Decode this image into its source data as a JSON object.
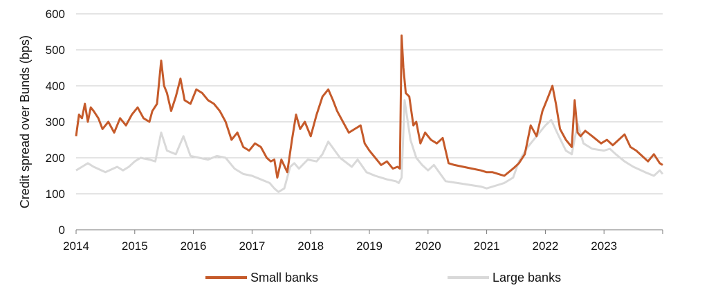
{
  "chart_data": {
    "type": "line",
    "title": "",
    "xlabel": "",
    "ylabel": "Credit spread over Bunds (bps)",
    "xlim": [
      2014,
      2024
    ],
    "ylim": [
      0,
      600
    ],
    "y_ticks": [
      0,
      100,
      200,
      300,
      400,
      500,
      600
    ],
    "x_ticks": [
      2014,
      2015,
      2016,
      2017,
      2018,
      2019,
      2020,
      2021,
      2022,
      2023
    ],
    "x_tick_labels": [
      "2014",
      "2015",
      "2016",
      "2017",
      "2018",
      "2019",
      "2020",
      "2021",
      "2022",
      "2023"
    ],
    "y_tick_labels": [
      "0",
      "100",
      "200",
      "300",
      "400",
      "500",
      "600"
    ],
    "grid": "horizontal",
    "legend_position": "bottom",
    "series": [
      {
        "name": "Large banks",
        "color": "#d9d9d9",
        "x": [
          2014.0,
          2014.1,
          2014.2,
          2014.3,
          2014.5,
          2014.7,
          2014.8,
          2014.9,
          2015.0,
          2015.1,
          2015.25,
          2015.35,
          2015.45,
          2015.55,
          2015.7,
          2015.83,
          2015.95,
          2016.1,
          2016.25,
          2016.4,
          2016.55,
          2016.7,
          2016.85,
          2017.0,
          2017.15,
          2017.3,
          2017.38,
          2017.45,
          2017.55,
          2017.65,
          2017.72,
          2017.8,
          2017.95,
          2018.1,
          2018.2,
          2018.3,
          2018.5,
          2018.7,
          2018.8,
          2018.95,
          2019.1,
          2019.3,
          2019.45,
          2019.5,
          2019.55,
          2019.6,
          2019.7,
          2019.8,
          2019.9,
          2020.0,
          2020.1,
          2020.3,
          2020.5,
          2020.7,
          2020.9,
          2021.0,
          2021.2,
          2021.3,
          2021.45,
          2021.55,
          2021.7,
          2021.85,
          2022.0,
          2022.1,
          2022.2,
          2022.35,
          2022.45,
          2022.55,
          2022.65,
          2022.8,
          2023.0,
          2023.1,
          2023.2,
          2023.35,
          2023.5,
          2023.7,
          2023.85,
          2023.95,
          2024.0
        ],
        "y": [
          165,
          175,
          185,
          175,
          160,
          175,
          165,
          175,
          190,
          200,
          195,
          190,
          270,
          220,
          210,
          260,
          205,
          200,
          195,
          205,
          200,
          170,
          155,
          150,
          140,
          130,
          115,
          105,
          115,
          175,
          185,
          170,
          195,
          190,
          210,
          245,
          200,
          175,
          195,
          160,
          150,
          140,
          135,
          130,
          145,
          360,
          250,
          200,
          180,
          165,
          180,
          135,
          130,
          125,
          120,
          115,
          125,
          130,
          145,
          190,
          230,
          260,
          290,
          305,
          270,
          220,
          210,
          295,
          240,
          225,
          220,
          225,
          210,
          190,
          175,
          160,
          150,
          165,
          155
        ]
      },
      {
        "name": "Small banks",
        "color": "#c55a2a",
        "x": [
          2014.0,
          2014.05,
          2014.1,
          2014.15,
          2014.2,
          2014.25,
          2014.3,
          2014.38,
          2014.45,
          2014.55,
          2014.65,
          2014.75,
          2014.85,
          2014.95,
          2015.05,
          2015.15,
          2015.25,
          2015.3,
          2015.38,
          2015.45,
          2015.5,
          2015.55,
          2015.62,
          2015.7,
          2015.78,
          2015.85,
          2015.95,
          2016.05,
          2016.15,
          2016.25,
          2016.35,
          2016.45,
          2016.55,
          2016.65,
          2016.75,
          2016.85,
          2016.95,
          2017.05,
          2017.15,
          2017.25,
          2017.32,
          2017.38,
          2017.43,
          2017.5,
          2017.6,
          2017.68,
          2017.75,
          2017.82,
          2017.9,
          2018.0,
          2018.1,
          2018.2,
          2018.3,
          2018.38,
          2018.45,
          2018.55,
          2018.65,
          2018.75,
          2018.85,
          2018.92,
          2019.0,
          2019.1,
          2019.2,
          2019.3,
          2019.4,
          2019.48,
          2019.52,
          2019.55,
          2019.58,
          2019.62,
          2019.68,
          2019.75,
          2019.8,
          2019.87,
          2019.95,
          2020.05,
          2020.15,
          2020.25,
          2020.35,
          2020.45,
          2020.6,
          2020.75,
          2020.9,
          2021.0,
          2021.1,
          2021.2,
          2021.3,
          2021.45,
          2021.55,
          2021.65,
          2021.75,
          2021.85,
          2021.95,
          2022.05,
          2022.12,
          2022.18,
          2022.25,
          2022.35,
          2022.45,
          2022.5,
          2022.55,
          2022.6,
          2022.68,
          2022.8,
          2022.95,
          2023.05,
          2023.15,
          2023.25,
          2023.35,
          2023.45,
          2023.55,
          2023.65,
          2023.75,
          2023.85,
          2023.95,
          2024.0
        ],
        "y": [
          260,
          320,
          310,
          350,
          300,
          340,
          330,
          310,
          280,
          300,
          270,
          310,
          290,
          320,
          340,
          310,
          300,
          330,
          350,
          470,
          400,
          380,
          330,
          370,
          420,
          360,
          350,
          390,
          380,
          360,
          350,
          330,
          300,
          250,
          270,
          230,
          220,
          240,
          230,
          200,
          190,
          195,
          145,
          195,
          160,
          250,
          320,
          280,
          300,
          260,
          320,
          370,
          390,
          360,
          330,
          300,
          270,
          280,
          290,
          240,
          220,
          200,
          180,
          190,
          170,
          175,
          170,
          540,
          450,
          380,
          370,
          290,
          300,
          240,
          270,
          250,
          240,
          255,
          185,
          180,
          175,
          170,
          165,
          160,
          160,
          155,
          150,
          170,
          185,
          210,
          290,
          260,
          330,
          370,
          400,
          350,
          280,
          250,
          230,
          360,
          270,
          260,
          275,
          260,
          240,
          250,
          235,
          250,
          265,
          230,
          220,
          205,
          190,
          210,
          185,
          180
        ]
      }
    ]
  }
}
